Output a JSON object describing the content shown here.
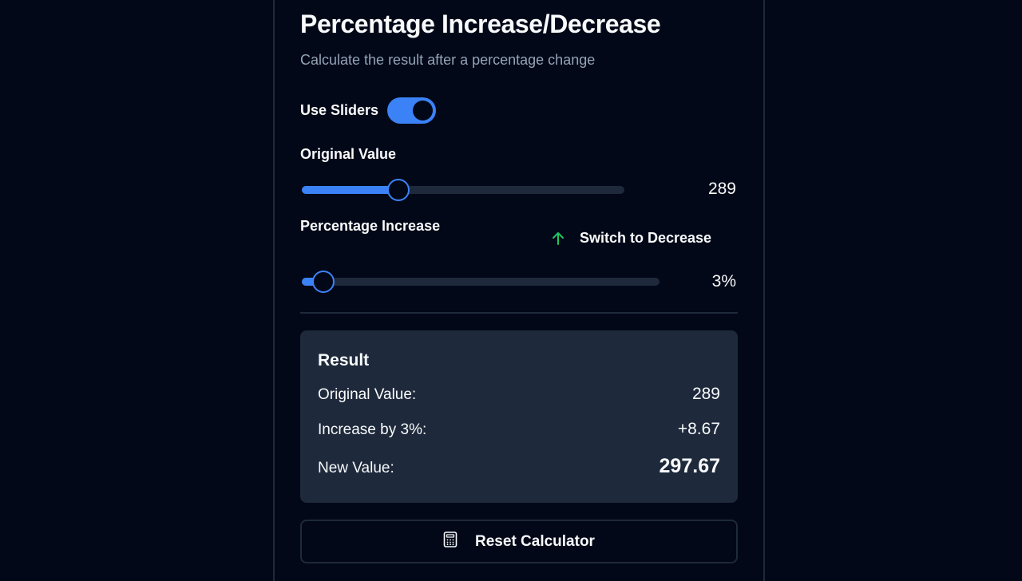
{
  "header": {
    "title": "Percentage Increase/Decrease",
    "subtitle": "Calculate the result after a percentage change"
  },
  "use_sliders": {
    "label": "Use Sliders",
    "enabled": true
  },
  "original_value": {
    "label": "Original Value",
    "value": "289",
    "slider_fraction": 0.3
  },
  "percentage": {
    "label": "Percentage Increase",
    "value": "3%",
    "slider_fraction": 0.06,
    "switch_label": "Switch to Decrease",
    "switch_icon": "arrow-up-icon"
  },
  "result": {
    "title": "Result",
    "rows": [
      {
        "label": "Original Value:",
        "value": "289"
      },
      {
        "label": "Increase by 3%:",
        "value": "+8.67"
      },
      {
        "label": "New Value:",
        "value": "297.67"
      }
    ]
  },
  "reset": {
    "label": "Reset Calculator",
    "icon": "calculator-icon"
  },
  "colors": {
    "background": "#020817",
    "accent": "#3b82f6",
    "track": "#1e293b",
    "muted_text": "#94a3b8",
    "increase_arrow": "#22c55e"
  }
}
